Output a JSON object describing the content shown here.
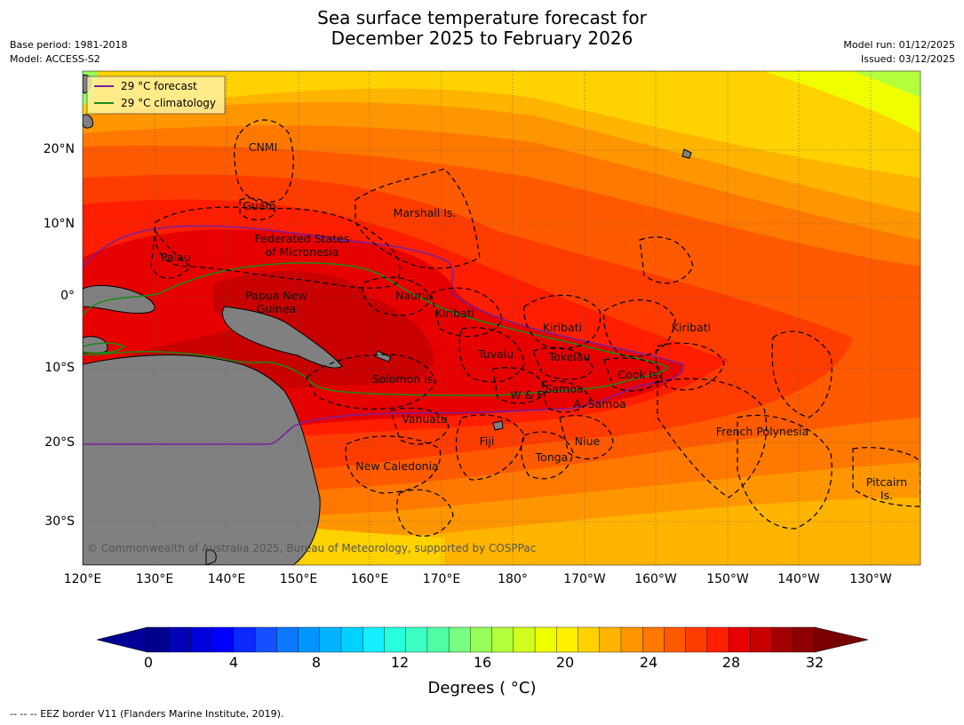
{
  "title_line1": "Sea surface temperature forecast for",
  "title_line2": "December 2025 to February 2026",
  "left_meta": {
    "base_period": "Base period: 1981-2018",
    "model": "Model: ACCESS-S2"
  },
  "right_meta": {
    "model_run": "Model run: 01/12/2025",
    "issued": "Issued: 03/12/2025"
  },
  "legend": {
    "forecast_label": "29 °C  forecast",
    "climatology_label": "29 °C  climatology",
    "forecast_color": "#7a1fa0",
    "climatology_color": "#1a8a1a"
  },
  "copyright": "© Commonwealth of Australia 2025, Bureau of Meteorology, supported by COSPPac",
  "lat_labels": [
    "20°N",
    "10°N",
    "0°",
    "10°S",
    "20°S",
    "30°S"
  ],
  "lon_labels": [
    "120°E",
    "130°E",
    "140°E",
    "150°E",
    "160°E",
    "170°E",
    "180°",
    "170°W",
    "160°W",
    "150°W",
    "140°W",
    "130°W"
  ],
  "places": {
    "cnmi": "CNMI",
    "guam": "Guam",
    "marshall": "Marshall Is.",
    "fsm1": "Federated States",
    "fsm2": "of Micronesia",
    "palau": "Palau",
    "png1": "Papua New",
    "png2": "Guinea",
    "nauru": "Nauru",
    "kiribati_w": "Kiribati",
    "kiribati_c": "Kiribati",
    "kiribati_e": "Kiribati",
    "tuvalu": "Tuvalu",
    "tokelau": "Tokelau",
    "cook": "Cook Is.",
    "solomon": "Solomon Is.",
    "wf": "W & F",
    "samoa": "Samoa",
    "asamoa": "A. Samoa",
    "vanuatu": "Vanuatu",
    "fiji": "Fiji",
    "niue": "Niue",
    "tonga": "Tonga",
    "newcal": "New Caledonia",
    "frpoly": "French Polynesia",
    "pitcairn1": "Pitcairn",
    "pitcairn2": "Is."
  },
  "colorbar": {
    "colors": [
      "#00008c",
      "#0000b4",
      "#0000dc",
      "#0000ff",
      "#0a28ff",
      "#1450ff",
      "#0a78ff",
      "#0096ff",
      "#00b4ff",
      "#00d2ff",
      "#14f0ff",
      "#28ffdc",
      "#3cffc3",
      "#50ffa5",
      "#78ff82",
      "#96ff5a",
      "#b4ff3c",
      "#d2ff1e",
      "#f0ff00",
      "#fff000",
      "#ffd200",
      "#ffb400",
      "#ff9600",
      "#ff7800",
      "#ff5a00",
      "#ff3c00",
      "#ff1e00",
      "#e60000",
      "#c80000",
      "#a00000",
      "#8c0000"
    ],
    "low_color": "#000096",
    "high_color": "#780000",
    "ticks": [
      "0",
      "4",
      "8",
      "12",
      "16",
      "20",
      "24",
      "28",
      "32"
    ],
    "title": "Degrees ( °C)"
  },
  "footer": "--  --  -- EEZ border V11 (Flanders Marine Institute, 2019)."
}
